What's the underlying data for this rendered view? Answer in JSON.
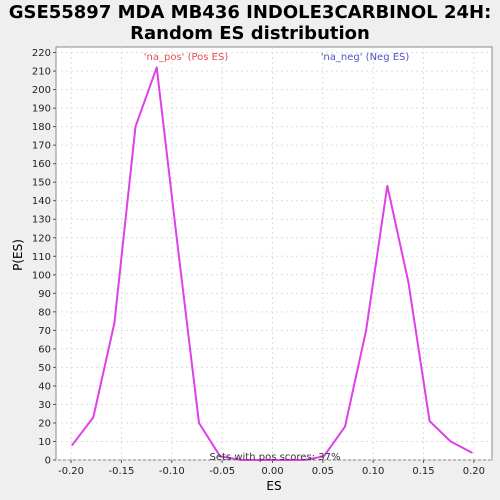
{
  "chart_data": {
    "type": "line",
    "title_line1": "GSE55897 MDA MB436 INDOLE3CARBINOL 24H:",
    "title_line2": "Random ES distribution",
    "xlabel": "ES",
    "ylabel": "P(ES)",
    "xlim": [
      -0.215,
      0.218
    ],
    "ylim": [
      0,
      223
    ],
    "xticks": [
      -0.2,
      -0.15,
      -0.1,
      -0.05,
      0.0,
      0.05,
      0.1,
      0.15,
      0.2
    ],
    "xtick_labels": [
      "-0.20",
      "-0.15",
      "-0.10",
      "-0.05",
      "0.00",
      "0.05",
      "0.10",
      "0.15",
      "0.20"
    ],
    "yticks": [
      0,
      10,
      20,
      30,
      40,
      50,
      60,
      70,
      80,
      90,
      100,
      110,
      120,
      130,
      140,
      150,
      160,
      170,
      180,
      190,
      200,
      210,
      220
    ],
    "grid": true,
    "series": [
      {
        "color": "#e040e8",
        "x": [
          -0.199,
          -0.178,
          -0.157,
          -0.136,
          -0.115,
          -0.094,
          -0.073,
          -0.052,
          -0.031,
          -0.01,
          0.011,
          0.032,
          0.051,
          0.072,
          0.093,
          0.114,
          0.135,
          0.156,
          0.177,
          0.198
        ],
        "y": [
          8,
          23,
          74,
          180,
          212,
          115,
          20,
          2,
          0,
          0,
          0,
          0,
          2,
          18,
          70,
          148,
          96,
          21,
          10,
          4
        ]
      }
    ],
    "annotations": {
      "pos_label": "'na_pos' (Pos ES)",
      "neg_label": "'na_neg' (Neg ES)",
      "pos_color": "#e05050",
      "neg_color": "#5050c8",
      "bottom_note": "Sets with pos scores: 37%"
    }
  }
}
